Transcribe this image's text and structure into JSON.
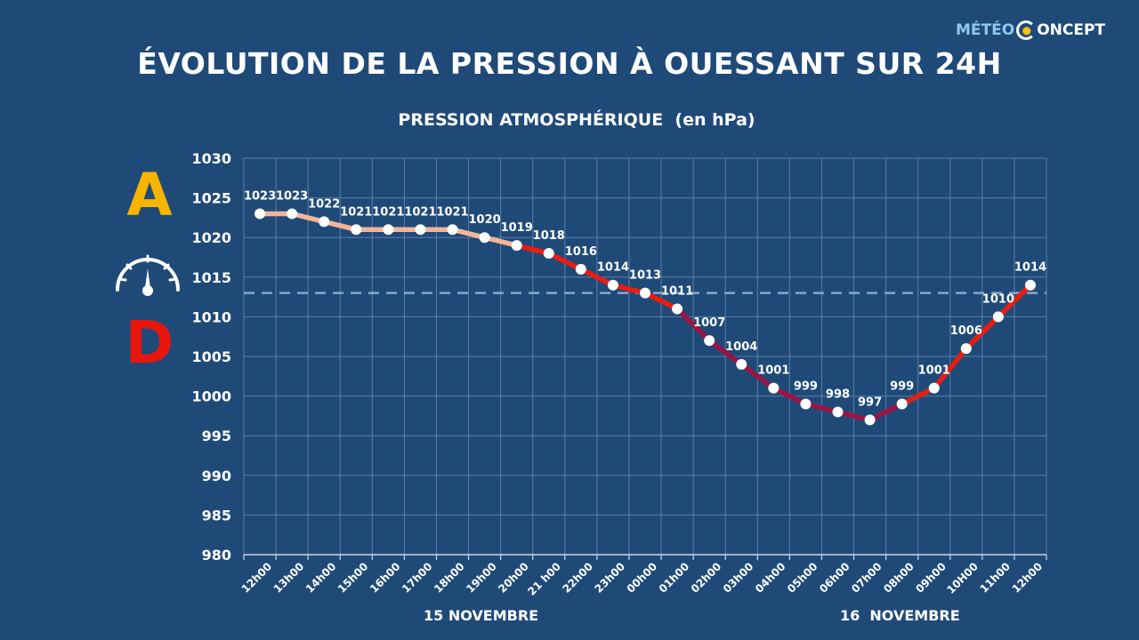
{
  "chart_data": {
    "type": "line",
    "title": "ÉVOLUTION DE LA PRESSION À OUESSANT SUR 24H",
    "subtitle": "PRESSION ATMOSPHÉRIQUE  (en hPa)",
    "x": [
      "12h00",
      "13h00",
      "14h00",
      "15h00",
      "16h00",
      "17h00",
      "18h00",
      "19h00",
      "20h00",
      "21 h00",
      "22h00",
      "23h00",
      "00h00",
      "01h00",
      "02h00",
      "03h00",
      "04h00",
      "05h00",
      "06h00",
      "07h00",
      "08h00",
      "09h00",
      "10H00",
      "11h00",
      "12h00"
    ],
    "series": [
      {
        "name": "Pression",
        "values": [
          1023,
          1023,
          1022,
          1021,
          1021,
          1021,
          1021,
          1020,
          1019,
          1018,
          1016,
          1014,
          1013,
          1011,
          1007,
          1004,
          1001,
          999,
          998,
          997,
          999,
          1001,
          1006,
          1010,
          1014
        ]
      }
    ],
    "data_labels": [
      "1023",
      "1023",
      "1022",
      "1021",
      "1021",
      "1021",
      "1021",
      "1020",
      "1019",
      "1018",
      "1016",
      "1014",
      "1013",
      "1011",
      "1007",
      "1004",
      "1001",
      "999",
      "998",
      "997",
      "999",
      "1001",
      "1006",
      "1010",
      "1014"
    ],
    "ylim": [
      980,
      1030
    ],
    "yticks": [
      1030,
      1025,
      1020,
      1015,
      1010,
      1005,
      1000,
      995,
      990,
      985,
      980
    ],
    "ytick_labels": [
      "1030",
      "1025",
      "1020",
      "1015",
      "1010",
      "1005",
      "1000",
      "995",
      "990",
      "985",
      "980"
    ],
    "reference_line": 1013,
    "grid": true,
    "dates": [
      "15 NOVEMBRE",
      "16  NOVEMBRE"
    ],
    "colors": {
      "background": "#1f4a78",
      "grid": "#5b7ea5",
      "reference": "#8aa7c8",
      "line_light": "#f5b49a",
      "line_red": "#ea1c12",
      "line_dark": "#9b1444",
      "marker": "#ffffff"
    }
  },
  "legend": {
    "high": "A",
    "low": "D",
    "gauge_icon": "barometer-gauge-icon"
  },
  "brand": {
    "part1": "MÉTÉO",
    "part2": "ONCEPT"
  }
}
